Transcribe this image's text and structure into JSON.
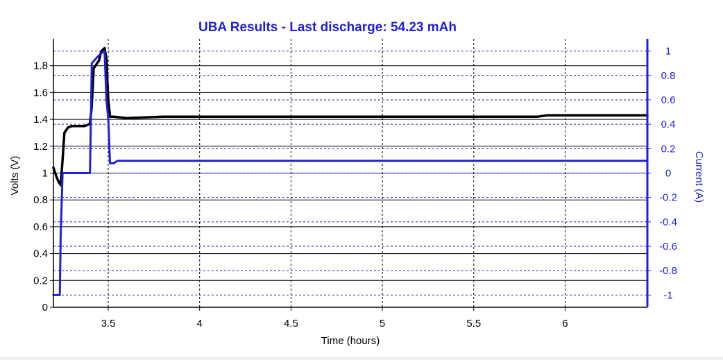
{
  "chart_data": {
    "type": "line",
    "title": "UBA Results - Last discharge: 54.23 mAh",
    "xlabel": "Time (hours)",
    "ylabel_left": "Volts (V)",
    "ylabel_right": "Current (A)",
    "xlim": [
      3.2,
      6.45
    ],
    "ylim_left": [
      0,
      2.0
    ],
    "ylim_right": [
      -1.1,
      1.1
    ],
    "x_ticks": [
      "3.5",
      "4",
      "4.5",
      "5",
      "5.5",
      "6"
    ],
    "y_left_ticks": [
      "0",
      "0.2",
      "0.4",
      "0.6",
      "0.8",
      "1",
      "1.2",
      "1.4",
      "1.6",
      "1.8"
    ],
    "y_right_ticks": [
      "-1",
      "-0.8",
      "-0.6",
      "-0.4",
      "-0.2",
      "0",
      "0.2",
      "0.4",
      "0.6",
      "0.8",
      "1"
    ],
    "grid": true,
    "series": [
      {
        "name": "Volts",
        "axis": "left",
        "color": "#000000",
        "x": [
          3.2,
          3.21,
          3.22,
          3.23,
          3.24,
          3.25,
          3.26,
          3.28,
          3.3,
          3.34,
          3.37,
          3.39,
          3.4,
          3.41,
          3.42,
          3.43,
          3.44,
          3.45,
          3.46,
          3.47,
          3.48,
          3.49,
          3.5,
          3.51,
          3.53,
          3.6,
          3.8,
          4.0,
          5.0,
          5.85,
          5.9,
          6.45
        ],
        "y": [
          1.04,
          1.0,
          0.96,
          0.93,
          0.91,
          1.1,
          1.3,
          1.34,
          1.35,
          1.35,
          1.35,
          1.36,
          1.37,
          1.5,
          1.78,
          1.8,
          1.82,
          1.84,
          1.9,
          1.92,
          1.93,
          1.85,
          1.55,
          1.42,
          1.42,
          1.41,
          1.42,
          1.42,
          1.42,
          1.42,
          1.43,
          1.43
        ]
      },
      {
        "name": "Current",
        "axis": "right",
        "color": "#1f1fd6",
        "x": [
          3.2,
          3.215,
          3.22,
          3.235,
          3.24,
          3.25,
          3.26,
          3.3,
          3.35,
          3.39,
          3.4,
          3.41,
          3.44,
          3.46,
          3.48,
          3.49,
          3.5,
          3.51,
          3.53,
          3.55,
          3.6,
          4.0,
          5.0,
          6.0,
          6.45
        ],
        "y": [
          -1.0,
          -1.0,
          -1.0,
          -1.0,
          -0.5,
          0.0,
          0.0,
          0.0,
          0.0,
          0.0,
          0.0,
          0.9,
          0.95,
          0.98,
          1.0,
          0.6,
          0.45,
          0.08,
          0.08,
          0.1,
          0.1,
          0.1,
          0.1,
          0.1,
          0.1
        ]
      }
    ]
  }
}
